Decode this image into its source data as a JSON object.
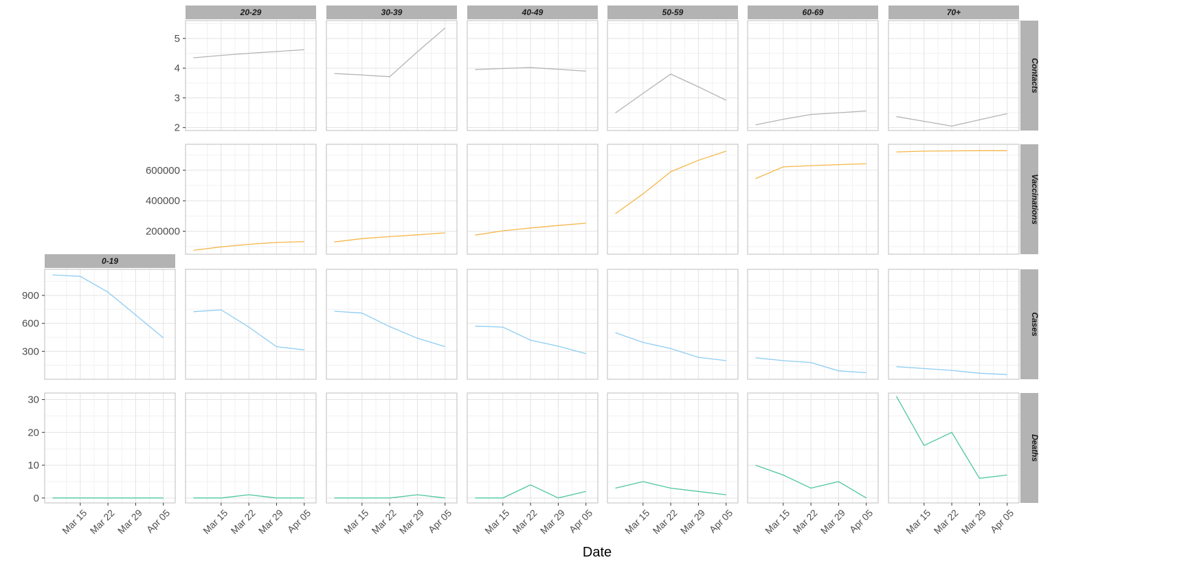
{
  "chart_data": {
    "type": "line",
    "xlabel": "Date",
    "x_tick_labels": [
      "Mar 15",
      "Mar 22",
      "Mar 29",
      "Apr 05"
    ],
    "x_tick_days": [
      14,
      21,
      28,
      35
    ],
    "x_dates": [
      "Mar 08",
      "Mar 15",
      "Mar 22",
      "Mar 29",
      "Apr 05"
    ],
    "x_days": [
      7,
      14,
      21,
      28,
      35
    ],
    "x_range_days": [
      5,
      38
    ],
    "age_groups": [
      "0-19",
      "20-29",
      "30-39",
      "40-49",
      "50-59",
      "60-69",
      "70+"
    ],
    "metrics": [
      {
        "name": "Contacts",
        "color": "#b3b3b3",
        "ylim": [
          1.9,
          5.6
        ],
        "yticks": [
          2,
          3,
          4,
          5
        ],
        "ytick_labels": [
          "2",
          "3",
          "4",
          "5"
        ],
        "values": {
          "20-29": [
            4.35,
            4.43,
            4.5,
            4.56,
            4.62
          ],
          "30-39": [
            3.82,
            3.77,
            3.71,
            4.55,
            5.35
          ],
          "40-49": [
            3.95,
            3.99,
            4.02,
            3.96,
            3.9
          ],
          "50-59": [
            2.49,
            3.15,
            3.8,
            3.37,
            2.92
          ],
          "60-69": [
            2.09,
            2.28,
            2.44,
            2.5,
            2.56
          ],
          "70+": [
            2.37,
            2.21,
            2.05,
            2.26,
            2.47
          ]
        }
      },
      {
        "name": "Vaccinations",
        "color": "#f5b648",
        "ylim": [
          50000,
          770000
        ],
        "yticks": [
          200000,
          400000,
          600000
        ],
        "ytick_labels": [
          "200000",
          "400000",
          "600000"
        ],
        "values": {
          "20-29": [
            75000,
            98000,
            115000,
            127000,
            133000
          ],
          "30-39": [
            130000,
            152000,
            165000,
            177000,
            190000
          ],
          "40-49": [
            175000,
            203000,
            222000,
            238000,
            253000
          ],
          "50-59": [
            315000,
            445000,
            590000,
            665000,
            725000
          ],
          "60-69": [
            545000,
            622000,
            630000,
            637000,
            642000
          ],
          "70+": [
            720000,
            725000,
            727000,
            728000,
            728000
          ]
        }
      },
      {
        "name": "Cases",
        "color": "#8dcdf2",
        "ylim": [
          0,
          1180
        ],
        "yticks": [
          300,
          600,
          900
        ],
        "ytick_labels": [
          "300",
          "600",
          "900"
        ],
        "values": {
          "0-19": [
            1120,
            1105,
            935,
            690,
            445
          ],
          "20-29": [
            725,
            745,
            560,
            350,
            315
          ],
          "30-39": [
            730,
            710,
            565,
            440,
            350
          ],
          "40-49": [
            570,
            560,
            420,
            355,
            275
          ],
          "50-59": [
            500,
            395,
            330,
            235,
            200
          ],
          "60-69": [
            230,
            200,
            180,
            90,
            70
          ],
          "70+": [
            135,
            115,
            95,
            65,
            50
          ]
        }
      },
      {
        "name": "Deaths",
        "color": "#4dc79b",
        "ylim": [
          -1.5,
          32
        ],
        "yticks": [
          0,
          10,
          20,
          30
        ],
        "ytick_labels": [
          "0",
          "10",
          "20",
          "30"
        ],
        "values": {
          "0-19": [
            0,
            0,
            0,
            0,
            0
          ],
          "20-29": [
            0,
            0,
            1,
            0,
            0
          ],
          "30-39": [
            0,
            0,
            0,
            1,
            0
          ],
          "40-49": [
            0,
            0,
            4,
            0,
            2
          ],
          "50-59": [
            3,
            5,
            3,
            2,
            1
          ],
          "60-69": [
            10,
            7,
            3,
            5,
            0
          ],
          "70+": [
            31,
            16,
            20,
            6,
            7
          ]
        }
      }
    ]
  }
}
